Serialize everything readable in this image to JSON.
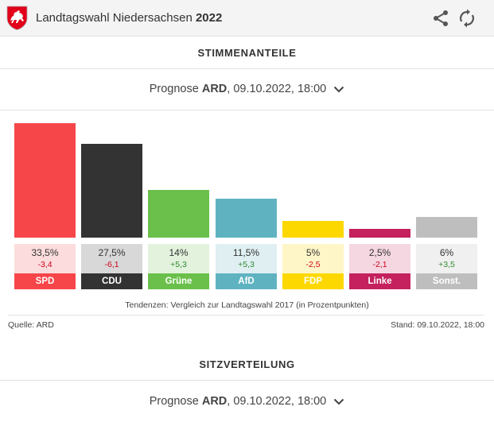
{
  "header": {
    "title_prefix": "Landtagswahl Niedersachsen ",
    "title_year": "2022"
  },
  "section1": {
    "title": "STIMMENANTEILE",
    "selector": {
      "label": "Prognose ",
      "source": "ARD",
      "suffix": ", 09.10.2022, 18:00"
    }
  },
  "chart_data": {
    "type": "bar",
    "categories": [
      "SPD",
      "CDU",
      "Grüne",
      "AfD",
      "FDP",
      "Linke",
      "Sonst."
    ],
    "values": [
      33.5,
      27.5,
      14,
      11.5,
      5,
      2.5,
      6
    ],
    "value_labels": [
      "33,5%",
      "27,5%",
      "14%",
      "11,5%",
      "5%",
      "2,5%",
      "6%"
    ],
    "diffs": [
      -3.4,
      -6.1,
      5.3,
      5.3,
      -2.5,
      -2.1,
      3.5
    ],
    "diff_labels": [
      "-3,4",
      "-6,1",
      "+5,3",
      "+5,3",
      "-2,5",
      "-2,1",
      "+3,5"
    ],
    "colors": [
      "#f7464a",
      "#333333",
      "#6ac04a",
      "#5fb3c1",
      "#fdd800",
      "#c4215e",
      "#bebebe"
    ],
    "box_colors": [
      "#fcdcdc",
      "#d8d8d8",
      "#e2f2dd",
      "#dfeff2",
      "#fff6c8",
      "#f5d7e2",
      "#f0f0f0"
    ],
    "label_colors": [
      "#f7464a",
      "#333333",
      "#6ac04a",
      "#5fb3c1",
      "#fdd800",
      "#c4215e",
      "#bebebe"
    ],
    "ylim": [
      0,
      35
    ],
    "footnote": "Tendenzen: Vergleich zur Landtagswahl 2017 (in Prozentpunkten)"
  },
  "meta": {
    "source": "Quelle: ARD",
    "stand": "Stand: 09.10.2022, 18:00"
  },
  "section2": {
    "title": "SITZVERTEILUNG",
    "selector": {
      "label": "Prognose ",
      "source": "ARD",
      "suffix": ", 09.10.2022, 18:00"
    }
  },
  "colors": {
    "negative": "#d0021b",
    "positive": "#2e8b2e"
  },
  "icons": {
    "crest": "lower-saxony-crest-icon",
    "share": "share-icon",
    "refresh": "refresh-icon"
  }
}
